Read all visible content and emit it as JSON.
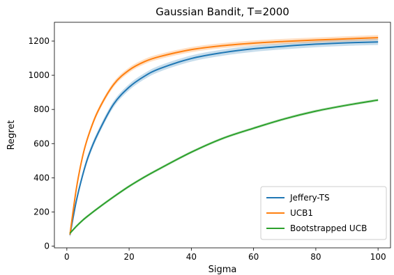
{
  "chart_data": {
    "type": "line",
    "title": "Gaussian Bandit, T=2000",
    "xlabel": "Sigma",
    "ylabel": "Regret",
    "xlim": [
      -4,
      104
    ],
    "ylim": [
      -10,
      1310
    ],
    "xticks": [
      0,
      20,
      40,
      60,
      80,
      100
    ],
    "yticks": [
      0,
      200,
      400,
      600,
      800,
      1000,
      1200
    ],
    "grid": false,
    "legend_position": "lower-right",
    "x": [
      1,
      3,
      5,
      7,
      10,
      15,
      20,
      25,
      30,
      40,
      50,
      60,
      70,
      80,
      90,
      100
    ],
    "series": [
      {
        "name": "Jeffery-TS",
        "color": "#1f77b4",
        "values": [
          65,
          260,
          410,
          530,
          660,
          830,
          930,
          995,
          1040,
          1098,
          1132,
          1155,
          1170,
          1182,
          1190,
          1195
        ],
        "band": 18
      },
      {
        "name": "UCB1",
        "color": "#ff7f0e",
        "values": [
          68,
          330,
          520,
          650,
          790,
          945,
          1030,
          1080,
          1110,
          1150,
          1173,
          1188,
          1198,
          1206,
          1213,
          1220
        ],
        "band": 15
      },
      {
        "name": "Bootstrapped UCB",
        "color": "#2ca02c",
        "values": [
          75,
          115,
          150,
          180,
          222,
          288,
          350,
          405,
          455,
          550,
          630,
          690,
          745,
          790,
          825,
          855
        ],
        "band": 8
      }
    ]
  }
}
